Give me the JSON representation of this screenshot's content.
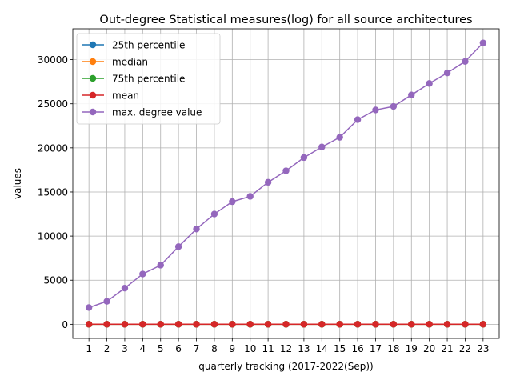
{
  "chart_data": {
    "type": "line",
    "title": "Out-degree Statistical measures(log) for all source architectures",
    "xlabel": "quarterly tracking (2017-2022(Sep))",
    "ylabel": "values",
    "x": [
      1,
      2,
      3,
      4,
      5,
      6,
      7,
      8,
      9,
      10,
      11,
      12,
      13,
      14,
      15,
      16,
      17,
      18,
      19,
      20,
      21,
      22,
      23
    ],
    "x_ticks": [
      "1",
      "2",
      "3",
      "4",
      "5",
      "6",
      "7",
      "8",
      "9",
      "10",
      "11",
      "12",
      "13",
      "14",
      "15",
      "16",
      "17",
      "18",
      "19",
      "20",
      "21",
      "22",
      "23"
    ],
    "xlim": [
      0.1,
      23.9
    ],
    "ylim": [
      -1600,
      33500
    ],
    "y_ticks": [
      0,
      5000,
      10000,
      15000,
      20000,
      25000,
      30000
    ],
    "y_tick_labels": [
      "0",
      "5000",
      "10000",
      "15000",
      "20000",
      "25000",
      "30000"
    ],
    "grid": true,
    "legend_position": "top-left",
    "series": [
      {
        "name": "25th percentile",
        "color": "#1f77b4",
        "values": [
          1,
          1,
          1,
          1,
          1,
          1,
          1,
          1,
          1,
          1,
          1,
          1,
          1,
          1,
          1,
          1,
          1,
          1,
          1,
          1,
          1,
          1,
          1
        ]
      },
      {
        "name": "median",
        "color": "#ff7f0e",
        "values": [
          2,
          2,
          2,
          2,
          2,
          2,
          2,
          2,
          2,
          2,
          2,
          2,
          2,
          2,
          2,
          2,
          2,
          2,
          2,
          2,
          2,
          2,
          2
        ]
      },
      {
        "name": "75th percentile",
        "color": "#2ca02c",
        "values": [
          5,
          5,
          5,
          5,
          5,
          5,
          5,
          5,
          5,
          5,
          5,
          5,
          5,
          5,
          5,
          5,
          5,
          5,
          5,
          5,
          5,
          5,
          5
        ]
      },
      {
        "name": "mean",
        "color": "#d62728",
        "values": [
          8,
          8,
          8,
          8,
          8,
          8,
          8,
          8,
          8,
          8,
          8,
          8,
          8,
          8,
          8,
          8,
          8,
          8,
          8,
          8,
          8,
          8,
          8
        ]
      },
      {
        "name": "max. degree value",
        "color": "#9467bd",
        "values": [
          1900,
          2600,
          4100,
          5700,
          6700,
          8800,
          10800,
          12500,
          13900,
          14500,
          16100,
          17400,
          18900,
          20100,
          21200,
          23200,
          24300,
          24700,
          26000,
          27300,
          28500,
          29800,
          31900
        ]
      }
    ]
  }
}
